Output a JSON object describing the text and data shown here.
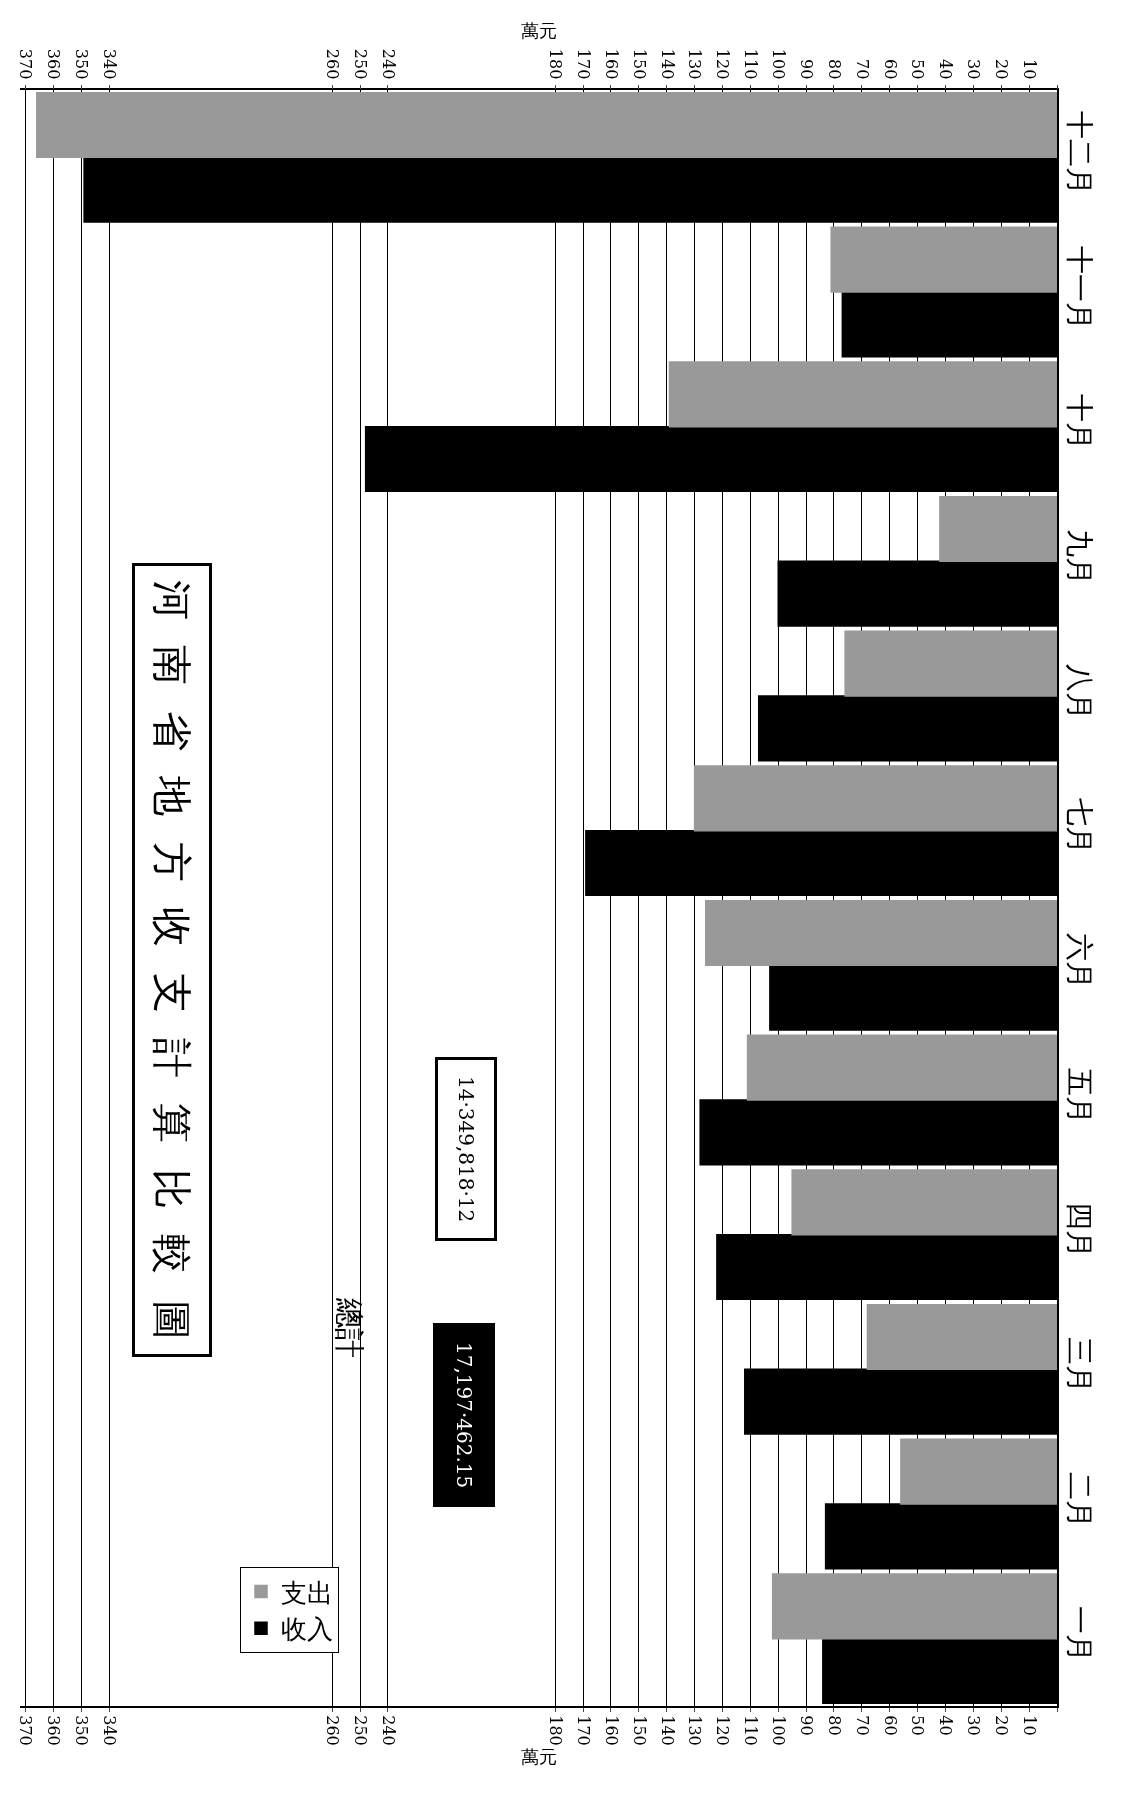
{
  "chart_data": {
    "type": "bar",
    "orientation": "horizontal",
    "title": "河南省地方收支計算比較圖",
    "xlabel": "萬元",
    "x2label": "萬元",
    "categories": [
      "十二月",
      "十一月",
      "十月",
      "九月",
      "八月",
      "七月",
      "六月",
      "五月",
      "四月",
      "三月",
      "二月",
      "一月"
    ],
    "series": [
      {
        "name": "收入",
        "color": "#000000",
        "values": [
          349,
          77,
          248,
          100,
          107,
          169,
          103,
          128,
          122,
          112,
          83,
          84
        ]
      },
      {
        "name": "支出",
        "color": "#999999",
        "values": [
          366,
          81,
          139,
          42,
          76,
          130,
          126,
          111,
          95,
          68,
          56,
          102
        ]
      }
    ],
    "xlim": [
      372,
      0
    ],
    "xticks": [
      {
        "value": 0,
        "label": null
      },
      10,
      20,
      30,
      40,
      50,
      60,
      70,
      80,
      90,
      100,
      110,
      120,
      130,
      140,
      150,
      160,
      170,
      180,
      240,
      250,
      260,
      340,
      350,
      360,
      370
    ],
    "x2lim": [
      372,
      0
    ],
    "x2ticks": [
      {
        "value": 0,
        "label": null
      },
      10,
      20,
      30,
      40,
      50,
      60,
      70,
      80,
      90,
      100,
      110,
      120,
      130,
      140,
      150,
      160,
      170,
      180,
      240,
      250,
      260,
      340,
      350,
      360,
      370
    ],
    "annotations": [
      "總計",
      "17,197·462.15",
      "14·349,818·12"
    ],
    "legend": "left",
    "grid": "x"
  }
}
